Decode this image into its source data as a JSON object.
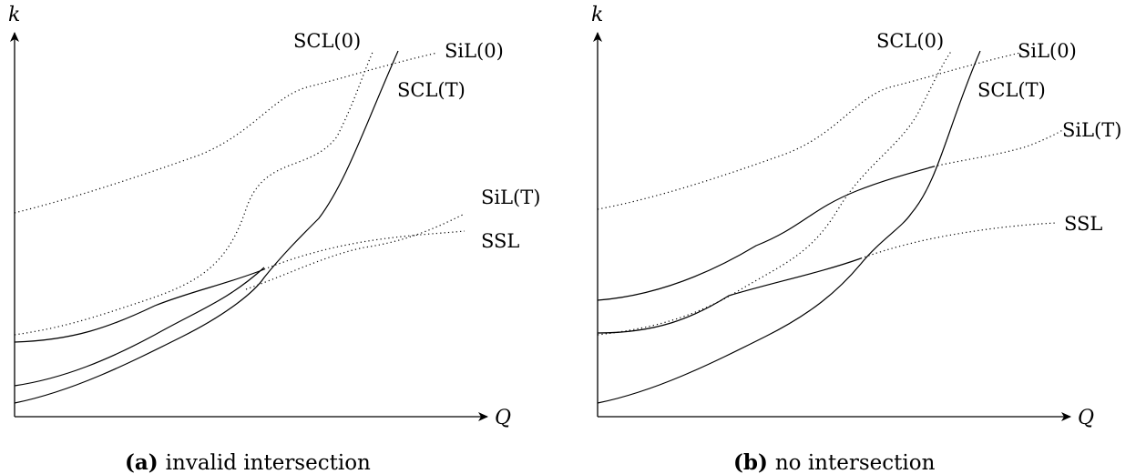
{
  "panel_a": {
    "axis_y_label": "k",
    "axis_x_label": "Q",
    "labels": {
      "scl0": "SCL(0)",
      "sil0": "SiL(0)",
      "sclT": "SCL(T)",
      "silT": "SiL(T)",
      "ssl": "SSL"
    },
    "caption_tag": "(a)",
    "caption_text": "invalid intersection"
  },
  "panel_b": {
    "axis_y_label": "k",
    "axis_x_label": "Q",
    "labels": {
      "scl0": "SCL(0)",
      "sil0": "SiL(0)",
      "sclT": "SCL(T)",
      "silT": "SiL(T)",
      "ssl": "SSL"
    },
    "caption_tag": "(b)",
    "caption_text": "no intersection"
  }
}
